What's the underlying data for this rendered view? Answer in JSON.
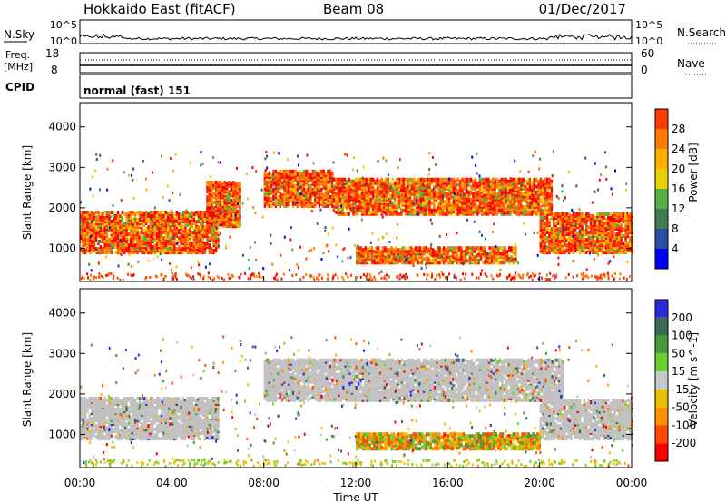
{
  "header": {
    "station": "Hokkaido East (fitACF)",
    "beam": "Beam 08",
    "date": "01/Dec/2017"
  },
  "nsky_panel": {
    "label": "N.Sky",
    "left_ticks": [
      "10^5",
      "10^0"
    ],
    "right_label": "N.Search",
    "right_ticks": [
      "10^5",
      "10^0"
    ]
  },
  "freq_panel": {
    "label_line1": "Freq.",
    "label_line2": "[MHz]",
    "left_ticks": [
      "18",
      "8"
    ],
    "right_label": "Nave",
    "right_ticks": [
      "60",
      "0"
    ]
  },
  "cpid_panel": {
    "label": "CPID",
    "text": "normal (fast) 151"
  },
  "colors": {
    "power_scale": [
      "#0000ff",
      "#2a4ea0",
      "#3f7f4f",
      "#56b046",
      "#e6d000",
      "#ffb000",
      "#ff7a00",
      "#ff3a00",
      "#ff0000"
    ],
    "velocity_scale": [
      "#2a2ad8",
      "#3a6a50",
      "#4a9a3a",
      "#6ad02a",
      "#c8c8c8",
      "#e8c000",
      "#ff9000",
      "#ff4a00",
      "#ff0000"
    ],
    "ground_scatter": "#c0c0c0"
  },
  "chart_data": [
    {
      "type": "heatmap",
      "name": "power",
      "xlabel": "",
      "ylabel": "Slant Range [km]",
      "x_range_hours": [
        0,
        24
      ],
      "ylim": [
        180,
        4600
      ],
      "y_ticks": [
        "1000",
        "2000",
        "3000",
        "4000"
      ],
      "colorbar_label": "Power [dB]",
      "colorbar_ticks": [
        "4",
        "8",
        "12",
        "16",
        "20",
        "24",
        "28"
      ],
      "regions": [
        {
          "t": [
            0,
            6
          ],
          "range": [
            850,
            1850
          ],
          "level": "strong"
        },
        {
          "t": [
            5.5,
            7
          ],
          "range": [
            1500,
            2600
          ],
          "level": "strong"
        },
        {
          "t": [
            8,
            11
          ],
          "range": [
            2000,
            2900
          ],
          "level": "strong"
        },
        {
          "t": [
            11,
            20.5
          ],
          "range": [
            1800,
            2700
          ],
          "level": "strong"
        },
        {
          "t": [
            20,
            24
          ],
          "range": [
            850,
            1800
          ],
          "level": "strong"
        },
        {
          "t": [
            12,
            19
          ],
          "range": [
            600,
            1000
          ],
          "level": "strong"
        }
      ]
    },
    {
      "type": "heatmap",
      "name": "velocity",
      "xlabel": "Time UT",
      "ylabel": "Slant Range [km]",
      "x_range_hours": [
        0,
        24
      ],
      "x_ticks": [
        "00:00",
        "04:00",
        "08:00",
        "12:00",
        "16:00",
        "20:00",
        "00:00"
      ],
      "ylim": [
        180,
        4600
      ],
      "y_ticks": [
        "1000",
        "2000",
        "3000",
        "4000"
      ],
      "colorbar_label": "Velocity [m s^-1]",
      "colorbar_ticks": [
        "200",
        "100",
        "50",
        "15",
        "-15",
        "-50",
        "-100",
        "-200"
      ],
      "regions": [
        {
          "t": [
            0,
            6
          ],
          "range": [
            850,
            1850
          ],
          "value": "ground"
        },
        {
          "t": [
            8,
            21
          ],
          "range": [
            1800,
            2800
          ],
          "value": "ground"
        },
        {
          "t": [
            20,
            24
          ],
          "range": [
            850,
            1800
          ],
          "value": "ground"
        },
        {
          "t": [
            12,
            20
          ],
          "range": [
            600,
            1000
          ],
          "value": "-50"
        }
      ]
    }
  ]
}
